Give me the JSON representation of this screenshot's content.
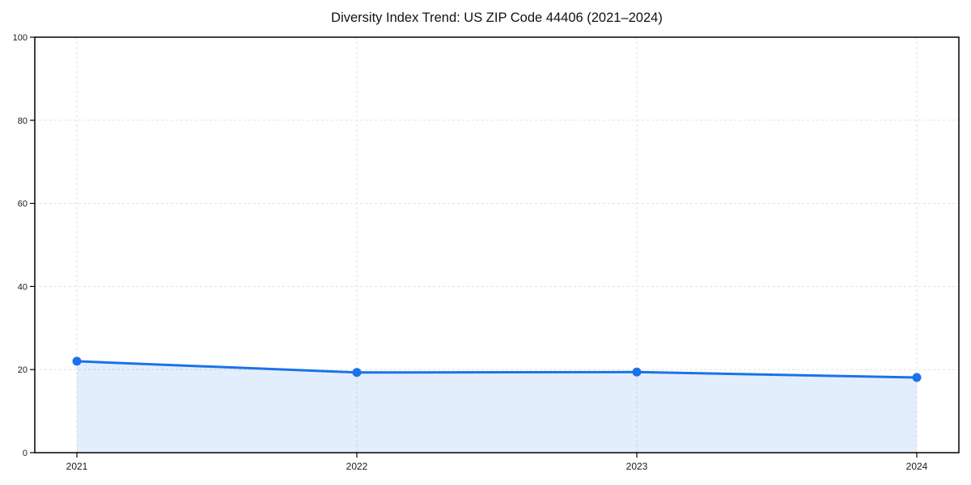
{
  "chart_data": {
    "type": "area",
    "title": "Diversity Index Trend: US ZIP Code 44406 (2021–2024)",
    "x": [
      "2021",
      "2022",
      "2023",
      "2024"
    ],
    "series": [
      {
        "name": "Diversity Index",
        "values": [
          22.0,
          19.3,
          19.4,
          18.1
        ]
      }
    ],
    "xlabel": "",
    "ylabel": "",
    "ylim": [
      0,
      100
    ],
    "yticks": [
      0,
      20,
      40,
      60,
      80,
      100
    ],
    "grid": true,
    "grid_style": "dashed",
    "legend": false,
    "marker": "circle",
    "colors": {
      "line": "#1a73e8",
      "fill": "rgba(26,115,232,0.12)",
      "grid": "#e0e0e0",
      "axis": "#000000",
      "tick_text": "#1a1a1a"
    }
  }
}
